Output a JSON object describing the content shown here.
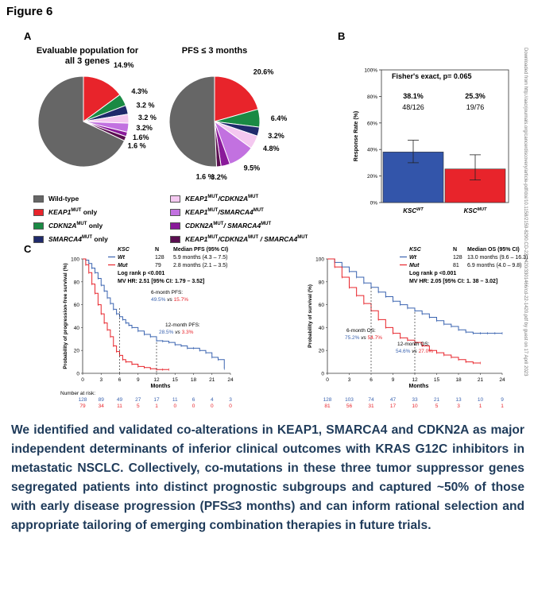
{
  "figure_title": "Figure 6",
  "panel_a_letter": "A",
  "panel_b_letter": "B",
  "panel_c_letter": "C",
  "side_note": "Downloaded from http://aacrjournals.org/cancerdiscovery/article-pdf/doi/10.1158/2159-8290.CD-22-1420/3301466/cd-22-1420.pdf by guest on 17 April 2023",
  "colors": {
    "wild_type": "#666666",
    "keap1_only": "#e8242b",
    "cdkn2a_only": "#1a8a44",
    "smarca4_only": "#1f2a6b",
    "keap1_cdkn2a": "#f4c8f0",
    "keap1_smarca4": "#c271e0",
    "cdkn2a_smarca4": "#8a1a9a",
    "triple": "#5a0f50",
    "bar_wt": "#3355aa",
    "bar_mut": "#e8242b",
    "km_wt": "#3a63b0",
    "km_mut": "#e8242b",
    "summary_text": "#1f3b5a"
  },
  "chart_data": [
    {
      "type": "pie",
      "title": "Evaluable population for all 3 genes",
      "categories": [
        "KEAP1MUT only",
        "CDKN2AMUT only",
        "SMARCA4MUT only",
        "KEAP1MUT/CDKN2AMUT",
        "KEAP1MUT/SMARCA4MUT",
        "CDKN2AMUT/ SMARCA4MUT",
        "KEAP1MUT/CDKN2AMUT / SMARCA4MUT",
        "Wild-type"
      ],
      "values": [
        14.9,
        4.3,
        3.2,
        3.2,
        3.2,
        1.6,
        1.6,
        68.0
      ],
      "labels": [
        "14.9%",
        "4.3%",
        "3.2 %",
        "3.2 %",
        "3.2%",
        "1.6%",
        "1.6 %",
        ""
      ]
    },
    {
      "type": "pie",
      "title": "PFS ≤ 3 months",
      "categories": [
        "KEAP1MUT only",
        "CDKN2AMUT only",
        "SMARCA4MUT only",
        "KEAP1MUT/CDKN2AMUT",
        "KEAP1MUT/SMARCA4MUT",
        "CDKN2AMUT/ SMARCA4MUT",
        "KEAP1MUT/CDKN2AMUT / SMARCA4MUT",
        "Wild-type"
      ],
      "values": [
        20.6,
        6.4,
        3.2,
        4.8,
        9.5,
        3.2,
        1.6,
        50.7
      ],
      "labels": [
        "20.6%",
        "6.4%",
        "3.2%",
        "4.8%",
        "9.5%",
        "3.2%",
        "1.6 %",
        ""
      ]
    },
    {
      "type": "bar",
      "title": "Fisher's exact, p= 0.065",
      "categories": [
        "KSCWT",
        "KSCMUT"
      ],
      "values": [
        38.1,
        25.3
      ],
      "error_low": [
        30,
        17
      ],
      "error_high": [
        47,
        36
      ],
      "value_labels": [
        "38.1%",
        "25.3%"
      ],
      "count_labels": [
        "48/126",
        "19/76"
      ],
      "ylabel": "Response Rate (%)",
      "ylim": [
        0,
        100
      ],
      "yticks": [
        "0%",
        "20%",
        "40%",
        "60%",
        "80%",
        "100%"
      ]
    },
    {
      "type": "line",
      "ylabel": "Probability of progression-free survival (%)",
      "xlabel": "Months",
      "xticks": [
        0,
        3,
        6,
        9,
        12,
        15,
        18,
        21,
        24
      ],
      "yticks": [
        0,
        20,
        40,
        60,
        80,
        100
      ],
      "xlim": [
        0,
        24
      ],
      "ylim": [
        0,
        100
      ],
      "series": [
        {
          "name": "Wt",
          "x": [
            0,
            0.5,
            1,
            1.5,
            2,
            2.5,
            3,
            3.5,
            4,
            4.5,
            5,
            5.5,
            6,
            6.5,
            7,
            7.5,
            8,
            9,
            10,
            11,
            12,
            13,
            14,
            15,
            16,
            17,
            18,
            19,
            20,
            21,
            22,
            23
          ],
          "y": [
            100,
            99,
            96,
            92,
            88,
            83,
            77,
            72,
            66,
            61,
            56,
            52,
            49.5,
            47,
            44,
            42,
            40,
            37,
            34,
            32,
            28.5,
            28,
            27,
            25,
            24,
            22,
            22,
            20,
            18,
            14,
            12,
            4
          ]
        },
        {
          "name": "Mut",
          "x": [
            0,
            0.5,
            1,
            1.5,
            2,
            2.5,
            3,
            3.5,
            4,
            4.5,
            5,
            5.5,
            6,
            6.5,
            7,
            8,
            9,
            10,
            11,
            12,
            13,
            14
          ],
          "y": [
            100,
            95,
            88,
            78,
            70,
            60,
            52,
            44,
            38,
            32,
            24,
            19,
            15.7,
            12,
            10,
            8,
            6,
            5,
            4,
            3.3,
            3.3,
            3.3
          ]
        }
      ],
      "annotations": [
        "6-month PFS:",
        "12-month PFS:"
      ],
      "header": {
        "col1": "KSC",
        "col2": "N",
        "col3": "Median PFS (95% CI)"
      },
      "rows": [
        {
          "name": "Wt",
          "n": "128",
          "median": "5.9 months (4.3 – 7.5)"
        },
        {
          "name": "Mut",
          "n": "79",
          "median": "2.8 months (2.1 – 3.5)"
        }
      ],
      "logrank": "Log rank p <0.001",
      "hr": "MV HR: 2.51 [95% CI: 1.79 – 3.52]",
      "ann6_wt": "49.5%",
      "ann6_vs": "vs",
      "ann6_mut": "15.7%",
      "ann12_wt": "28.5%",
      "ann12_vs": "vs",
      "ann12_mut": "3.3%",
      "risk_label": "Number at risk:",
      "risk_wt": [
        "128",
        "89",
        "49",
        "27",
        "17",
        "11",
        "6",
        "4",
        "3"
      ],
      "risk_mut": [
        "79",
        "34",
        "11",
        "5",
        "1",
        "0",
        "0",
        "0",
        "0"
      ]
    },
    {
      "type": "line",
      "ylabel": "Probability of survival (%)",
      "xlabel": "Months",
      "xticks": [
        0,
        3,
        6,
        9,
        12,
        15,
        18,
        21,
        24
      ],
      "yticks": [
        0,
        20,
        40,
        60,
        80,
        100
      ],
      "xlim": [
        0,
        24
      ],
      "ylim": [
        0,
        100
      ],
      "series": [
        {
          "name": "Wt",
          "x": [
            0,
            1,
            2,
            3,
            4,
            5,
            6,
            7,
            8,
            9,
            10,
            11,
            12,
            13,
            14,
            15,
            16,
            17,
            18,
            19,
            20,
            21,
            22,
            23,
            24
          ],
          "y": [
            100,
            97,
            93,
            89,
            84,
            79,
            75.2,
            71,
            67,
            63,
            60,
            57,
            54.6,
            52,
            49,
            46,
            43,
            41,
            38,
            36,
            35,
            35,
            35,
            35,
            35
          ]
        },
        {
          "name": "Mut",
          "x": [
            0,
            1,
            2,
            3,
            4,
            5,
            6,
            7,
            8,
            9,
            10,
            11,
            12,
            13,
            14,
            15,
            16,
            17,
            18,
            19,
            20,
            21
          ],
          "y": [
            100,
            93,
            84,
            75,
            68,
            61,
            54.7,
            47,
            40,
            35,
            31,
            29,
            27,
            24,
            20,
            18,
            16,
            14,
            12,
            10,
            9,
            9
          ]
        }
      ],
      "annotations": [
        "6-month OS:",
        "12-month OS:"
      ],
      "header": {
        "col1": "KSC",
        "col2": "N",
        "col3": "Median OS (95% CI)"
      },
      "rows": [
        {
          "name": "Wt",
          "n": "128",
          "median": "13.0 months (9.6 – 16.3)"
        },
        {
          "name": "Mut",
          "n": "81",
          "median": "6.9 months (4.0 – 9.8)"
        }
      ],
      "logrank": "Log rank p <0.001",
      "hr": "MV HR: 2.05 [95% CI: 1. 38 – 3.02]",
      "ann6_wt": "75.2%",
      "ann6_vs": "vs",
      "ann6_mut": "54.7%",
      "ann12_wt": "54.6%",
      "ann12_vs": "vs",
      "ann12_mut": "27.0%",
      "risk_label": "",
      "risk_wt": [
        "128",
        "103",
        "74",
        "47",
        "33",
        "21",
        "13",
        "10",
        "9"
      ],
      "risk_mut": [
        "81",
        "56",
        "31",
        "17",
        "10",
        "5",
        "3",
        "1",
        "1"
      ]
    }
  ],
  "legend": [
    {
      "main": "Wild-type",
      "sup": "",
      "tail": ""
    },
    {
      "main": "KEAP1",
      "sup": "MUT",
      "tail": " only"
    },
    {
      "main": "CDKN2A",
      "sup": "MUT",
      "tail": " only"
    },
    {
      "main": "SMARCA4",
      "sup": "MUT",
      "tail": " only"
    },
    {
      "main": "KEAP1",
      "sup": "MUT",
      "tail": "/CDKN2A",
      "sup2": "MUT"
    },
    {
      "main": "KEAP1",
      "sup": "MUT",
      "tail": "/SMARCA4",
      "sup2": "MUT"
    },
    {
      "main": "CDKN2A",
      "sup": "MUT",
      "tail": "/ SMARCA4",
      "sup2": "MUT"
    },
    {
      "main": "KEAP1",
      "sup": "MUT",
      "tail": "/CDKN2A",
      "sup2": "MUT",
      "tail2": " / SMARCA4",
      "sup3": "MUT"
    }
  ],
  "summary": "We identified and validated co-alterations in KEAP1, SMARCA4 and CDKN2A as major independent determinants of inferior clinical outcomes with KRAS G12C inhibitors in metastatic NSCLC. Collectively, co-mutations in these three tumor suppressor genes segregated patients into distinct prognostic subgroups and captured ~50% of those with early disease progression (PFS≤3 months) and can inform rational selection and appropriate tailoring of emerging combination therapies in future trials."
}
